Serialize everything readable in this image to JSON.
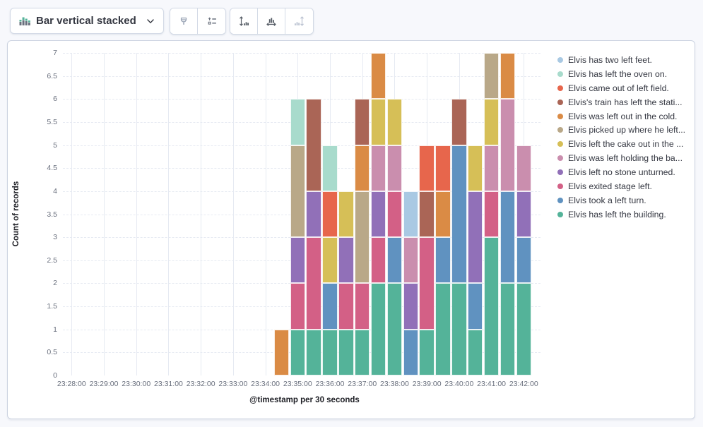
{
  "toolbar": {
    "chart_type_label": "Bar vertical stacked",
    "icons": {
      "chart_type": "bar-vertical-stacked-icon",
      "visual_options": "brush-icon",
      "legend_settings": "legend-settings-icon",
      "left_axis": "left-axis-icon",
      "bottom_axis": "bottom-axis-icon",
      "right_axis": "right-axis-icon"
    }
  },
  "chart": {
    "y_axis_title": "Count of records",
    "x_axis_title": "@timestamp per 30 seconds"
  },
  "chart_data": {
    "type": "bar",
    "stacked": true,
    "orientation": "vertical",
    "title": "",
    "xlabel": "@timestamp per 30 seconds",
    "ylabel": "Count of records",
    "ylim": [
      0,
      7
    ],
    "y_tick_step": 0.5,
    "y_tick_labels": [
      "0",
      "0.5",
      "1",
      "1.5",
      "2",
      "2.5",
      "3",
      "3.5",
      "4",
      "4.5",
      "5",
      "5.5",
      "6",
      "6.5",
      "7"
    ],
    "x_tick_labels": [
      "23:28:00",
      "23:29:00",
      "23:30:00",
      "23:31:00",
      "23:32:00",
      "23:33:00",
      "23:34:00",
      "23:35:00",
      "23:36:00",
      "23:37:00",
      "23:38:00",
      "23:39:00",
      "23:40:00",
      "23:41:00",
      "23:42:00"
    ],
    "x": [
      "23:34:30",
      "23:35:00",
      "23:35:30",
      "23:36:00",
      "23:36:30",
      "23:37:00",
      "23:37:30",
      "23:38:00",
      "23:38:30",
      "23:39:00",
      "23:39:30",
      "23:40:00",
      "23:40:30",
      "23:41:00",
      "23:41:30",
      "23:42:00"
    ],
    "grid": {
      "horizontal": "dashed",
      "vertical": "solid"
    },
    "legend_position": "right",
    "series": [
      {
        "name": "Elvis has left the building.",
        "color": "#54B399",
        "values": [
          0,
          1,
          1,
          1,
          1,
          1,
          2,
          2,
          0,
          1,
          2,
          2,
          1,
          3,
          2,
          2
        ]
      },
      {
        "name": "Elvis took a left turn.",
        "color": "#6092C0",
        "values": [
          0,
          0,
          0,
          1,
          0,
          0,
          0,
          1,
          1,
          0,
          1,
          3,
          1,
          0,
          2,
          1
        ]
      },
      {
        "name": "Elvis exited stage left.",
        "color": "#D36086",
        "values": [
          0,
          1,
          2,
          0,
          1,
          1,
          1,
          1,
          0,
          2,
          0,
          0,
          0,
          1,
          0,
          0
        ]
      },
      {
        "name": "Elvis left no stone unturned.",
        "color": "#9170B8",
        "values": [
          0,
          1,
          1,
          0,
          1,
          0,
          1,
          0,
          1,
          0,
          0,
          0,
          2,
          0,
          0,
          1
        ]
      },
      {
        "name": "Elvis was left holding the ba...",
        "color": "#CA8EAE",
        "values": [
          0,
          0,
          0,
          0,
          0,
          0,
          1,
          1,
          1,
          0,
          0,
          0,
          0,
          1,
          2,
          1
        ]
      },
      {
        "name": "Elvis left the cake out in the ...",
        "color": "#D6BF57",
        "values": [
          0,
          0,
          0,
          1,
          1,
          0,
          1,
          1,
          0,
          0,
          0,
          0,
          1,
          1,
          0,
          0
        ]
      },
      {
        "name": "Elvis picked up where he left...",
        "color": "#B9A888",
        "values": [
          0,
          2,
          0,
          0,
          0,
          2,
          0,
          0,
          0,
          0,
          0,
          0,
          0,
          1,
          0,
          0
        ]
      },
      {
        "name": "Elvis was left out in the cold.",
        "color": "#DA8B45",
        "values": [
          1,
          0,
          0,
          0,
          0,
          1,
          1,
          0,
          0,
          0,
          1,
          0,
          0,
          0,
          1,
          0
        ]
      },
      {
        "name": "Elvis's train has left the stati...",
        "color": "#AA6556",
        "values": [
          0,
          0,
          2,
          0,
          0,
          1,
          0,
          0,
          0,
          1,
          0,
          1,
          0,
          0,
          0,
          0
        ]
      },
      {
        "name": "Elvis came out of left field.",
        "color": "#E7664C",
        "values": [
          0,
          0,
          0,
          1,
          0,
          0,
          0,
          0,
          0,
          1,
          1,
          0,
          0,
          0,
          0,
          0
        ]
      },
      {
        "name": "Elvis has left the oven on.",
        "color": "#A8DBCC",
        "values": [
          0,
          1,
          0,
          1,
          0,
          0,
          0,
          0,
          0,
          0,
          0,
          0,
          0,
          0,
          0,
          0
        ]
      },
      {
        "name": "Elvis has two left feet.",
        "color": "#A9C9E3",
        "values": [
          0,
          0,
          0,
          0,
          0,
          0,
          0,
          0,
          1,
          0,
          0,
          0,
          0,
          0,
          0,
          0
        ]
      }
    ],
    "legend": [
      {
        "label": "Elvis has two left feet.",
        "color": "#A9C9E3"
      },
      {
        "label": "Elvis has left the oven on.",
        "color": "#A8DBCC"
      },
      {
        "label": "Elvis came out of left field.",
        "color": "#E7664C"
      },
      {
        "label": "Elvis's train has left the stati...",
        "color": "#AA6556"
      },
      {
        "label": "Elvis was left out in the cold.",
        "color": "#DA8B45"
      },
      {
        "label": "Elvis picked up where he left...",
        "color": "#B9A888"
      },
      {
        "label": "Elvis left the cake out in the ...",
        "color": "#D6BF57"
      },
      {
        "label": "Elvis was left holding the ba...",
        "color": "#CA8EAE"
      },
      {
        "label": "Elvis left no stone unturned.",
        "color": "#9170B8"
      },
      {
        "label": "Elvis exited stage left.",
        "color": "#D36086"
      },
      {
        "label": "Elvis took a left turn.",
        "color": "#6092C0"
      },
      {
        "label": "Elvis has left the building.",
        "color": "#54B399"
      }
    ]
  }
}
